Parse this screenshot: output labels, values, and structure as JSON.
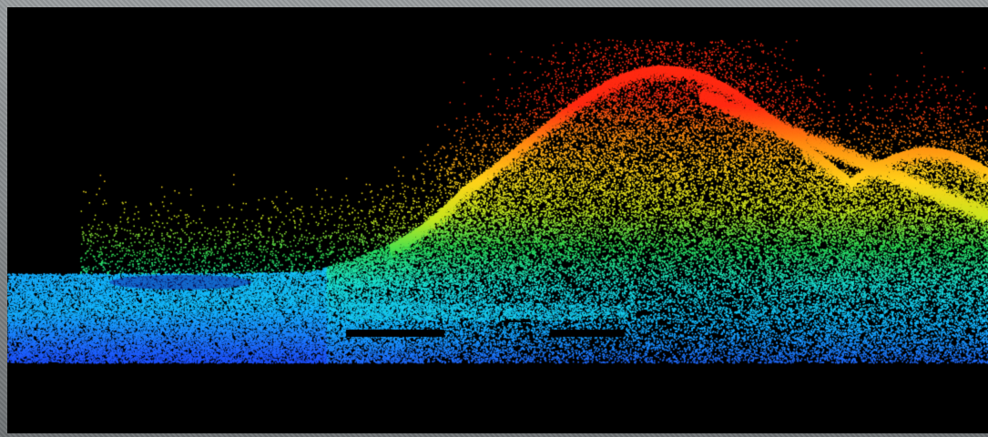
{
  "scene": {
    "subject": "lidar-point-cloud",
    "colormap": [
      "#1a2cff",
      "#1e6cff",
      "#14b8ff",
      "#19e0d8",
      "#2be05a",
      "#c8e61e",
      "#ffd21a",
      "#ff8a12",
      "#ff2a12"
    ],
    "background_color": "#000000",
    "border_color": "#8a8e90"
  }
}
